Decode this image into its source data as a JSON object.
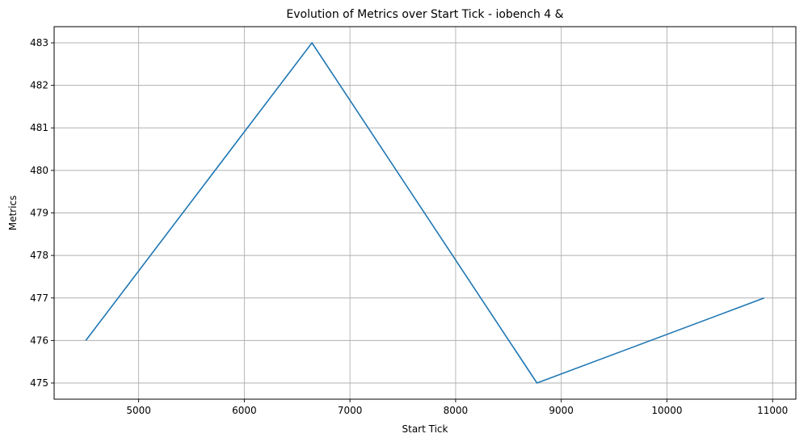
{
  "chart_data": {
    "type": "line",
    "title": "Evolution of Metrics over Start Tick - iobench 4 &",
    "xlabel": "Start Tick",
    "ylabel": "Metrics",
    "xlim": [
      4200,
      11220
    ],
    "ylim": [
      474.62,
      483.38
    ],
    "xticks": [
      5000,
      6000,
      7000,
      8000,
      9000,
      10000,
      11000
    ],
    "yticks": [
      475,
      476,
      477,
      478,
      479,
      480,
      481,
      482,
      483
    ],
    "grid": true,
    "series": [
      {
        "color": "#1f77b4",
        "x": [
          4500,
          6640,
          8770,
          10920
        ],
        "y": [
          476,
          483,
          475,
          477
        ]
      }
    ]
  }
}
